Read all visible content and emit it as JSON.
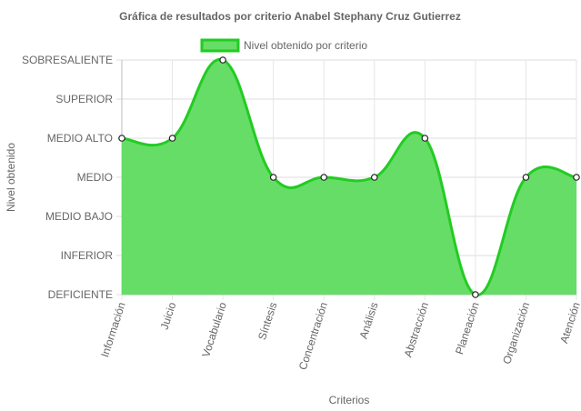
{
  "chart_data": {
    "type": "area",
    "title": "Gráfica de resultados por criterio Anabel Stephany Cruz Gutierrez",
    "xlabel": "Criterios",
    "ylabel": "Nivel obtenido",
    "y_levels": [
      "DEFICIENTE",
      "INFERIOR",
      "MEDIO BAJO",
      "MEDIO",
      "MEDIO ALTO",
      "SUPERIOR",
      "SOBRESALIENTE"
    ],
    "categories": [
      "Información",
      "Juicio",
      "Vocabulario",
      "Síntesis",
      "Concentración",
      "Análisis",
      "Abstracción",
      "Planeación",
      "Organización",
      "Atención"
    ],
    "series": [
      {
        "name": "Nivel obtenido por criterio",
        "values": [
          "MEDIO ALTO",
          "MEDIO ALTO",
          "SOBRESALIENTE",
          "MEDIO",
          "MEDIO",
          "MEDIO",
          "MEDIO ALTO",
          "DEFICIENTE",
          "MEDIO",
          "MEDIO"
        ],
        "fill_color": "#66dd66",
        "line_color": "#22cc22"
      }
    ],
    "grid": true,
    "legend_position": "top"
  }
}
